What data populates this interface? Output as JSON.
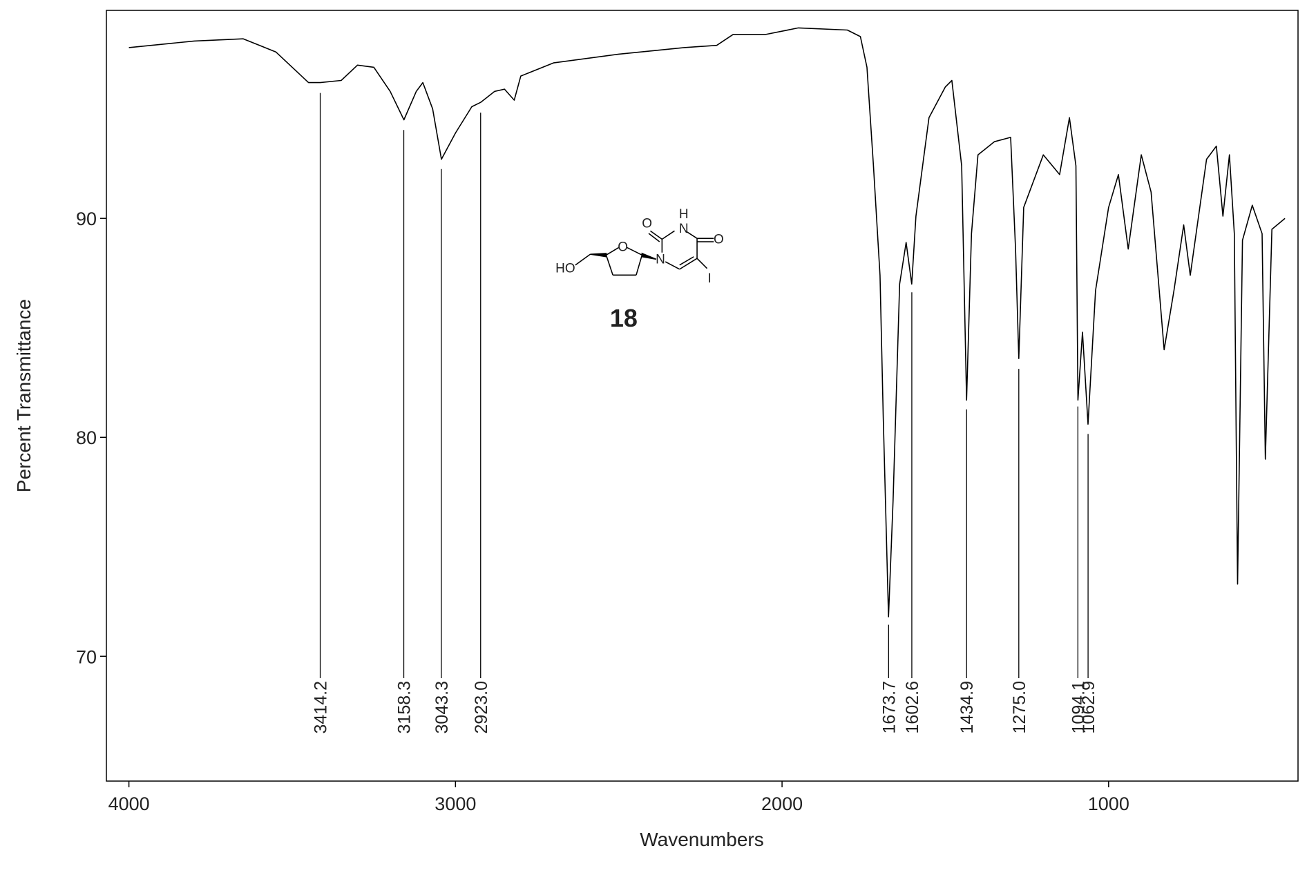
{
  "chart_data": {
    "type": "line",
    "xlabel": "Wavenumbers",
    "ylabel": "Percent Transmittance",
    "xlim": [
      4069,
      420
    ],
    "ylim": [
      64.3,
      99.5
    ],
    "xticks": [
      4000,
      3000,
      2000,
      1000
    ],
    "yticks": [
      70,
      80,
      90
    ],
    "x": [
      4000,
      3800,
      3650,
      3550,
      3450,
      3414,
      3350,
      3300,
      3250,
      3200,
      3158,
      3120,
      3100,
      3070,
      3043,
      3000,
      2950,
      2923,
      2880,
      2850,
      2820,
      2800,
      2700,
      2500,
      2300,
      2200,
      2150,
      2050,
      1950,
      1800,
      1760,
      1740,
      1720,
      1700,
      1690,
      1674,
      1660,
      1640,
      1620,
      1603,
      1590,
      1550,
      1500,
      1480,
      1450,
      1435,
      1420,
      1400,
      1350,
      1300,
      1285,
      1275,
      1260,
      1200,
      1150,
      1120,
      1100,
      1094,
      1080,
      1063,
      1040,
      1000,
      970,
      940,
      900,
      870,
      830,
      800,
      770,
      750,
      700,
      670,
      650,
      630,
      615,
      605,
      590,
      560,
      530,
      520,
      500,
      460
    ],
    "series": [
      {
        "color": "#000000",
        "values": [
          97.8,
          98.1,
          98.2,
          97.6,
          96.2,
          96.2,
          96.3,
          97.0,
          96.9,
          95.8,
          94.5,
          95.8,
          96.2,
          95.0,
          92.7,
          93.9,
          95.1,
          95.3,
          95.8,
          95.9,
          95.4,
          96.5,
          97.1,
          97.5,
          97.8,
          97.9,
          98.4,
          98.4,
          98.7,
          98.6,
          98.3,
          96.9,
          92.4,
          87.4,
          80.9,
          71.8,
          77.1,
          87.0,
          88.9,
          87.0,
          90.1,
          94.6,
          96.0,
          96.3,
          92.4,
          81.7,
          89.3,
          92.9,
          93.5,
          93.7,
          88.6,
          83.6,
          90.5,
          92.9,
          92.0,
          94.6,
          92.4,
          81.7,
          84.8,
          80.6,
          86.7,
          90.5,
          92.0,
          88.6,
          92.9,
          91.2,
          84.0,
          86.7,
          89.7,
          87.4,
          92.7,
          93.3,
          90.1,
          92.9,
          89.3,
          73.3,
          89.0,
          90.6,
          89.3,
          79.0,
          89.5,
          90.0
        ]
      }
    ],
    "peak_labels": [
      {
        "value": 3414.2,
        "label": "3414.2"
      },
      {
        "value": 3158.3,
        "label": "3158.3"
      },
      {
        "value": 3043.3,
        "label": "3043.3"
      },
      {
        "value": 2923.0,
        "label": "2923.0"
      },
      {
        "value": 1673.7,
        "label": "1673.7"
      },
      {
        "value": 1602.6,
        "label": "1602.6"
      },
      {
        "value": 1434.9,
        "label": "1434.9"
      },
      {
        "value": 1275.0,
        "label": "1275.0"
      },
      {
        "value": 1094.1,
        "label": "1094.1"
      },
      {
        "value": 1062.9,
        "label": "1062.9"
      }
    ]
  },
  "structure": {
    "label": "18",
    "atoms": [
      "HO",
      "O",
      "N",
      "N",
      "H",
      "O",
      "O",
      "I"
    ]
  }
}
